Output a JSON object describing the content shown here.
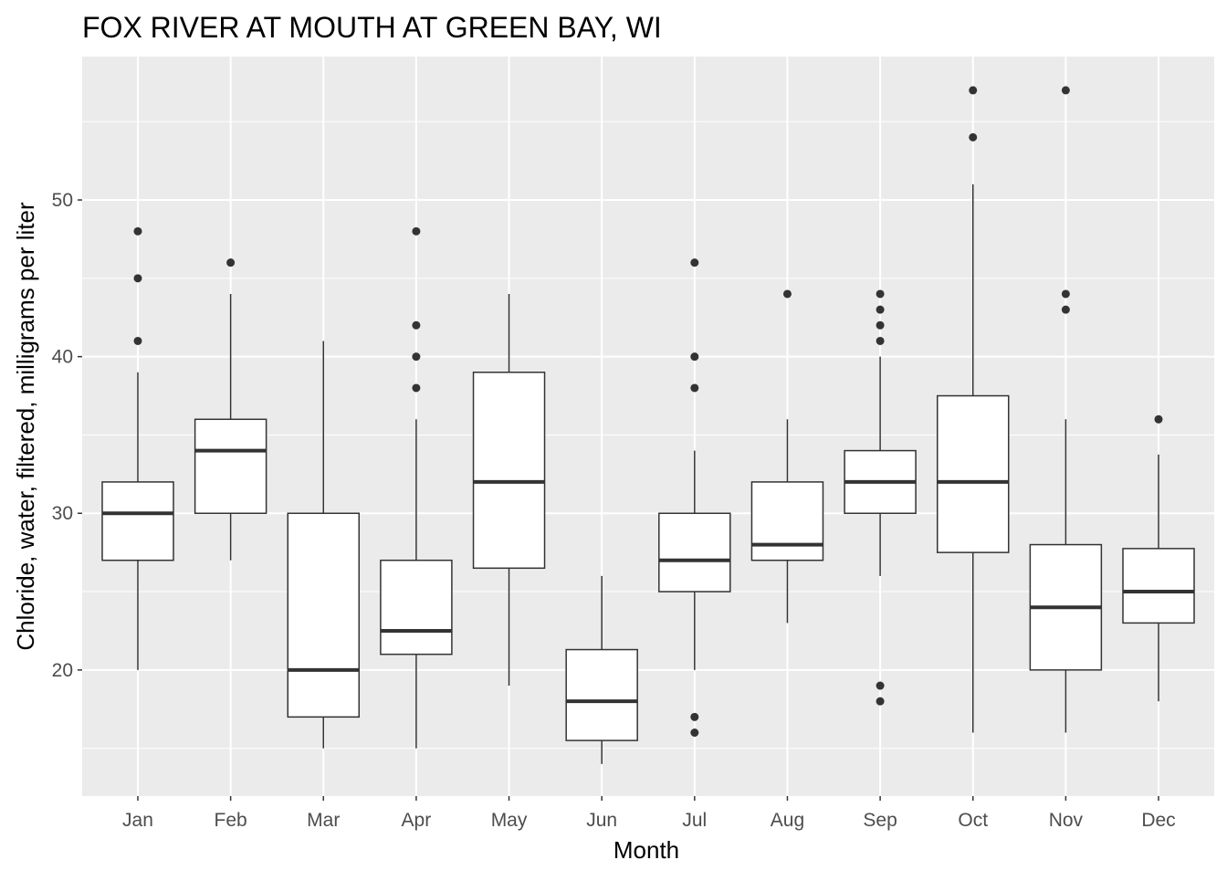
{
  "chart_data": {
    "type": "boxplot",
    "title": "FOX RIVER AT MOUTH AT GREEN BAY, WI",
    "xlabel": "Month",
    "ylabel": "Chloride, water, filtered, milligrams per liter",
    "ylim": [
      11.95,
      59.15
    ],
    "yticks": [
      20,
      30,
      40,
      50
    ],
    "yminor": [
      15,
      25,
      35,
      45,
      55
    ],
    "grid": true,
    "colors": {
      "panel": "#EBEBEB",
      "grid": "#FFFFFF",
      "box_fill": "#FFFFFF",
      "box_line": "#333333",
      "outlier": "#333333"
    },
    "categories": [
      "Jan",
      "Feb",
      "Mar",
      "Apr",
      "May",
      "Jun",
      "Jul",
      "Aug",
      "Sep",
      "Oct",
      "Nov",
      "Dec"
    ],
    "boxes": [
      {
        "low": 20,
        "q1": 27,
        "median": 30,
        "q3": 32,
        "high": 39,
        "outliers": [
          41,
          45,
          48
        ]
      },
      {
        "low": 27,
        "q1": 30,
        "median": 34,
        "q3": 36,
        "high": 44,
        "outliers": [
          46
        ]
      },
      {
        "low": 15,
        "q1": 17,
        "median": 20,
        "q3": 30,
        "high": 41,
        "outliers": []
      },
      {
        "low": 15,
        "q1": 21,
        "median": 22.5,
        "q3": 27,
        "high": 36,
        "outliers": [
          38,
          40,
          42,
          48
        ]
      },
      {
        "low": 19,
        "q1": 26.5,
        "median": 32,
        "q3": 39,
        "high": 44,
        "outliers": []
      },
      {
        "low": 14,
        "q1": 15.5,
        "median": 18,
        "q3": 21.3,
        "high": 26,
        "outliers": []
      },
      {
        "low": 20,
        "q1": 25,
        "median": 27,
        "q3": 30,
        "high": 34,
        "outliers": [
          16,
          17,
          38,
          40,
          46
        ]
      },
      {
        "low": 23,
        "q1": 27,
        "median": 28,
        "q3": 32,
        "high": 36,
        "outliers": [
          44
        ]
      },
      {
        "low": 26,
        "q1": 30,
        "median": 32,
        "q3": 34,
        "high": 40,
        "outliers": [
          18,
          19,
          41,
          42,
          43,
          44
        ]
      },
      {
        "low": 16,
        "q1": 27.5,
        "median": 32,
        "q3": 37.5,
        "high": 51,
        "outliers": [
          54,
          57
        ]
      },
      {
        "low": 16,
        "q1": 20,
        "median": 24,
        "q3": 28,
        "high": 36,
        "outliers": [
          43,
          44,
          57
        ]
      },
      {
        "low": 18,
        "q1": 23,
        "median": 25,
        "q3": 27.75,
        "high": 33.75,
        "outliers": [
          36
        ]
      }
    ]
  }
}
